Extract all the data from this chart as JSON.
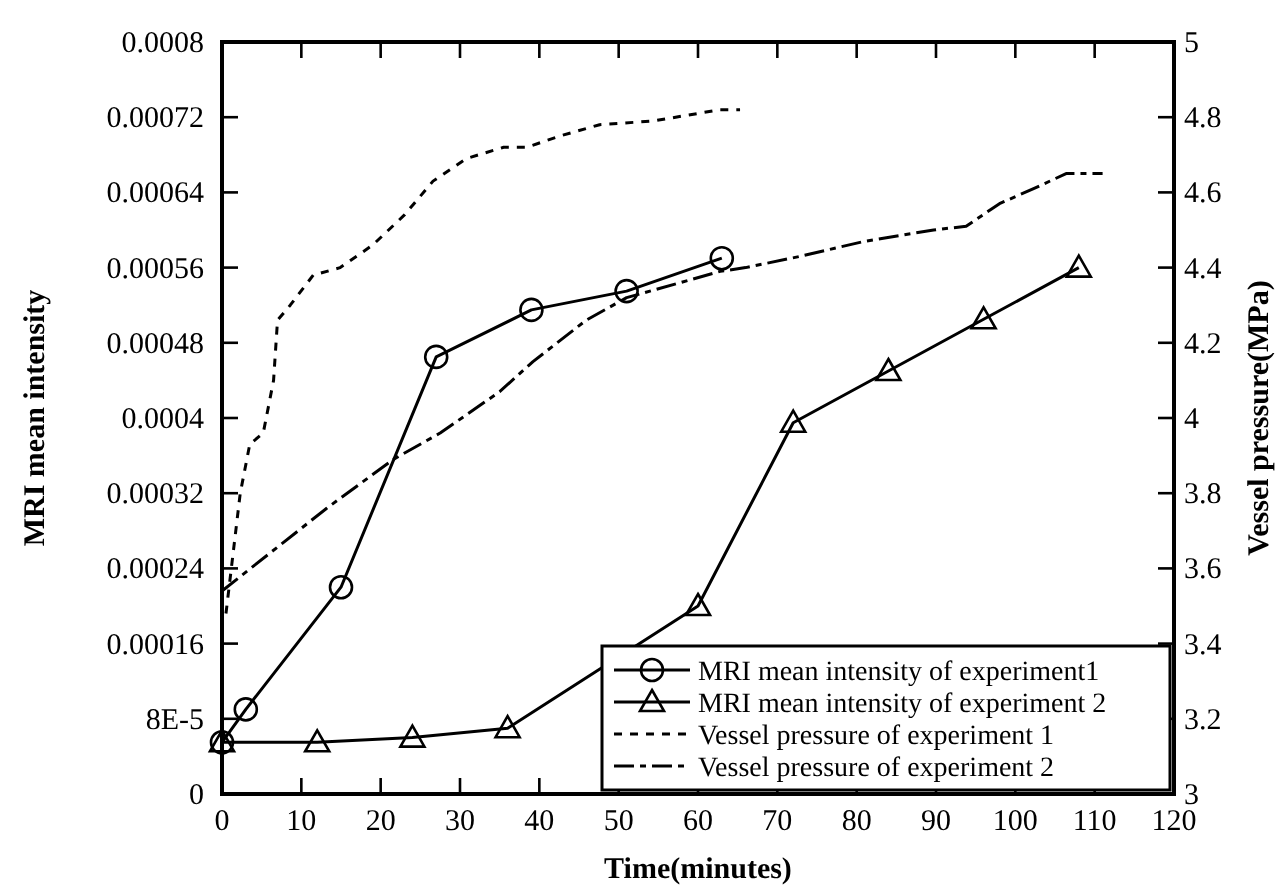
{
  "chart_data": {
    "type": "line",
    "xlabel": "Time(minutes)",
    "ylabel": "MRI mean intensity",
    "y2label": "Vessel pressure(MPa)",
    "xlim": [
      0,
      120
    ],
    "xticks": [
      0,
      10,
      20,
      30,
      40,
      50,
      60,
      70,
      80,
      90,
      100,
      110,
      120
    ],
    "ylim": [
      0,
      0.0008
    ],
    "yticks": [
      {
        "value": 0,
        "label": "0"
      },
      {
        "value": 8e-05,
        "label": "8E-5"
      },
      {
        "value": 0.00016,
        "label": "0.00016"
      },
      {
        "value": 0.00024,
        "label": "0.00024"
      },
      {
        "value": 0.00032,
        "label": "0.00032"
      },
      {
        "value": 0.0004,
        "label": "0.0004"
      },
      {
        "value": 0.00048,
        "label": "0.00048"
      },
      {
        "value": 0.00056,
        "label": "0.00056"
      },
      {
        "value": 0.00064,
        "label": "0.00064"
      },
      {
        "value": 0.00072,
        "label": "0.00072"
      },
      {
        "value": 0.0008,
        "label": "0.0008"
      }
    ],
    "y2lim": [
      3,
      5
    ],
    "y2ticks": [
      3,
      3.2,
      3.4,
      3.6,
      3.8,
      4,
      4.2,
      4.4,
      4.6,
      4.8,
      5
    ],
    "legend": "bottom right",
    "series": [
      {
        "name": "MRI mean intensity of experiment1",
        "color": "#000000",
        "marker": "circle",
        "line_style": "solid",
        "x": [
          0,
          3,
          15,
          27,
          39,
          51,
          63
        ],
        "values": [
          5.5e-05,
          9e-05,
          0.00022,
          0.000465,
          0.000515,
          0.000535,
          0.00057
        ]
      },
      {
        "name": "MRI mean intensity of experiment 2",
        "color": "#000000",
        "marker": "triangle",
        "line_style": "solid",
        "x": [
          0,
          12,
          24,
          36,
          60,
          72,
          84,
          96,
          108
        ],
        "values": [
          5.5e-05,
          5.5e-05,
          6e-05,
          7e-05,
          0.0002,
          0.000395,
          0.00045,
          0.000505,
          0.00056
        ]
      },
      {
        "name": "Vessel pressure of experiment 1",
        "color": "#000000",
        "marker": "none",
        "line_style": "dotted",
        "axis": "y2",
        "x": [
          0.5,
          2.3,
          3.5,
          5.2,
          6.5,
          7,
          8.6,
          11.5,
          14.9,
          19,
          23,
          26.6,
          30.8,
          35.5,
          38.4,
          42.6,
          47.6,
          54.4,
          62.8,
          65.3
        ],
        "values": [
          3.48,
          3.8,
          3.93,
          3.96,
          4.1,
          4.26,
          4.3,
          4.38,
          4.4,
          4.46,
          4.54,
          4.63,
          4.69,
          4.72,
          4.72,
          4.75,
          4.78,
          4.79,
          4.82,
          4.82
        ]
      },
      {
        "name": "Vessel pressure of experiment 2",
        "color": "#000000",
        "marker": "none",
        "line_style": "dashed",
        "axis": "y2",
        "x": [
          0,
          13.2,
          21.6,
          27.5,
          35,
          39.2,
          45.9,
          51,
          62.8,
          66,
          72.9,
          81,
          89.7,
          93.8,
          98,
          102.3,
          106.4,
          111
        ],
        "values": [
          3.54,
          3.76,
          3.89,
          3.96,
          4.07,
          4.15,
          4.26,
          4.32,
          4.39,
          4.4,
          4.43,
          4.47,
          4.5,
          4.51,
          4.57,
          4.61,
          4.65,
          4.65
        ]
      }
    ]
  }
}
